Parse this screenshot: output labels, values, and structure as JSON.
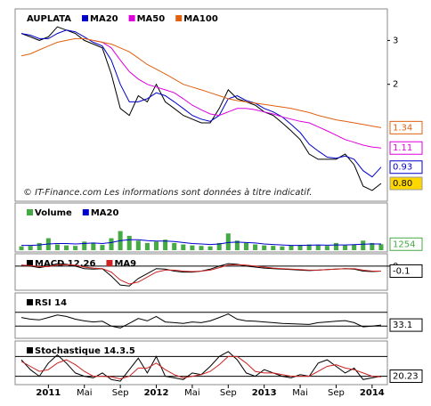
{
  "categories": [
    null,
    null,
    null,
    "2011",
    null,
    null,
    null,
    "Mai",
    null,
    null,
    null,
    "Sep",
    null,
    null,
    null,
    "2012",
    null,
    null,
    null,
    "Mai",
    null,
    null,
    null,
    "Sep",
    null,
    null,
    null,
    "2013",
    null,
    null,
    null,
    "Mai",
    null,
    null,
    null,
    "Sep",
    null,
    null,
    null,
    "2014",
    null
  ],
  "chart_data": [
    {
      "type": "line",
      "title": "AUPLATA",
      "log": true,
      "ylim": [
        0.69,
        3.95
      ],
      "yticks": [
        2,
        3
      ],
      "annotation": "© IT-Finance.com     Les informations sont données à titre indicatif.",
      "series": [
        {
          "color": "#000000",
          "last_label": true,
          "label_background": "#ffd700",
          "values": [
            3.2,
            3.1,
            3.0,
            3.1,
            3.4,
            3.3,
            3.2,
            3.0,
            2.9,
            2.8,
            2.2,
            1.6,
            1.5,
            1.8,
            1.7,
            2.0,
            1.7,
            1.6,
            1.5,
            1.45,
            1.4,
            1.4,
            1.6,
            1.9,
            1.75,
            1.7,
            1.65,
            1.55,
            1.5,
            1.4,
            1.3,
            1.2,
            1.05,
            1.0,
            1.0,
            1.0,
            1.05,
            0.95,
            0.78,
            0.75,
            0.8
          ],
          "value_labels": [
            null,
            null,
            null,
            null,
            null,
            null,
            null,
            null,
            null,
            null,
            null,
            null,
            null,
            null,
            null,
            null,
            null,
            null,
            null,
            null,
            null,
            null,
            null,
            null,
            null,
            null,
            null,
            null,
            null,
            null,
            null,
            null,
            null,
            null,
            null,
            null,
            null,
            null,
            null,
            null,
            "0.80"
          ]
        },
        {
          "name": "MA20",
          "color": "#0000cc",
          "last_label": true,
          "values": [
            3.2,
            3.15,
            3.05,
            3.05,
            3.2,
            3.3,
            3.25,
            3.1,
            2.95,
            2.85,
            2.5,
            2.0,
            1.7,
            1.7,
            1.75,
            1.85,
            1.8,
            1.7,
            1.6,
            1.5,
            1.45,
            1.42,
            1.5,
            1.75,
            1.8,
            1.72,
            1.68,
            1.6,
            1.55,
            1.48,
            1.38,
            1.28,
            1.15,
            1.08,
            1.02,
            1.01,
            1.03,
            1.0,
            0.9,
            0.85,
            0.93
          ]
        },
        {
          "name": "MA50",
          "color": "#dd00dd",
          "last_label": true,
          "values": [
            null,
            null,
            null,
            null,
            null,
            null,
            null,
            null,
            3.0,
            2.95,
            2.8,
            2.5,
            2.25,
            2.1,
            2.0,
            1.95,
            1.9,
            1.85,
            1.75,
            1.65,
            1.58,
            1.52,
            1.5,
            1.55,
            1.6,
            1.6,
            1.58,
            1.55,
            1.52,
            1.48,
            1.45,
            1.42,
            1.4,
            1.35,
            1.3,
            1.25,
            1.2,
            1.17,
            1.14,
            1.12,
            1.11
          ]
        },
        {
          "name": "MA100",
          "color": "#e06010",
          "last_label": true,
          "values": [
            2.6,
            2.65,
            2.75,
            2.85,
            2.95,
            3.0,
            3.05,
            3.05,
            3.0,
            2.95,
            2.9,
            2.8,
            2.7,
            2.55,
            2.4,
            2.3,
            2.2,
            2.1,
            2.0,
            1.95,
            1.9,
            1.85,
            1.8,
            1.75,
            1.72,
            1.7,
            1.68,
            1.66,
            1.64,
            1.62,
            1.6,
            1.57,
            1.54,
            1.5,
            1.47,
            1.44,
            1.42,
            1.4,
            1.38,
            1.36,
            1.34
          ]
        }
      ]
    },
    {
      "type": "bar",
      "ylim": [
        0,
        8000
      ],
      "series": [
        {
          "name": "Volume",
          "type": "bar",
          "color": "#44aa44",
          "last_label": true,
          "values": [
            800,
            900,
            1500,
            2500,
            1200,
            1000,
            900,
            1800,
            1500,
            1100,
            2500,
            4000,
            3000,
            2000,
            1500,
            1800,
            2200,
            1500,
            1200,
            1000,
            900,
            800,
            1500,
            3500,
            2000,
            1500,
            1200,
            1000,
            900,
            800,
            1000,
            1100,
            1200,
            1000,
            900,
            1500,
            1000,
            1200,
            2000,
            1500,
            1254
          ]
        },
        {
          "name": "MA20",
          "type": "line",
          "color": "#0000cc",
          "values": [
            1000,
            1000,
            1100,
            1300,
            1400,
            1400,
            1300,
            1400,
            1500,
            1400,
            1600,
            2000,
            2200,
            2200,
            2000,
            1900,
            1900,
            1800,
            1600,
            1400,
            1300,
            1200,
            1300,
            1600,
            1700,
            1600,
            1500,
            1300,
            1200,
            1100,
            1000,
            1000,
            1050,
            1100,
            1050,
            1100,
            1100,
            1150,
            1250,
            1300,
            1300
          ]
        }
      ]
    },
    {
      "type": "line",
      "ylim": [
        -0.45,
        0.07
      ],
      "yticks": [
        0
      ],
      "series": [
        {
          "name": "MACD 12.26",
          "color": "#000000",
          "last_label": true,
          "values": [
            0.02,
            0.0,
            -0.03,
            0.0,
            0.05,
            0.04,
            0.0,
            -0.05,
            -0.06,
            -0.05,
            -0.2,
            -0.38,
            -0.4,
            -0.25,
            -0.15,
            -0.05,
            -0.06,
            -0.1,
            -0.12,
            -0.12,
            -0.1,
            -0.06,
            0.0,
            0.05,
            0.04,
            0.0,
            -0.02,
            -0.04,
            -0.05,
            -0.06,
            -0.07,
            -0.08,
            -0.09,
            -0.08,
            -0.07,
            -0.06,
            -0.05,
            -0.06,
            -0.1,
            -0.11,
            -0.1
          ]
        },
        {
          "name": "MA9",
          "color": "#cc2222",
          "values": [
            0.02,
            0.01,
            -0.01,
            -0.01,
            0.02,
            0.03,
            0.02,
            -0.02,
            -0.04,
            -0.05,
            -0.12,
            -0.28,
            -0.36,
            -0.32,
            -0.22,
            -0.12,
            -0.08,
            -0.08,
            -0.1,
            -0.11,
            -0.1,
            -0.08,
            -0.03,
            0.02,
            0.03,
            0.02,
            0.0,
            -0.02,
            -0.04,
            -0.05,
            -0.06,
            -0.07,
            -0.08,
            -0.08,
            -0.07,
            -0.06,
            -0.05,
            -0.05,
            -0.08,
            -0.1,
            -0.1
          ]
        }
      ]
    },
    {
      "type": "line",
      "ylim": [
        0,
        100
      ],
      "hlines": [
        30,
        70
      ],
      "series": [
        {
          "name": "RSI 14",
          "color": "#000000",
          "last_label": true,
          "values": [
            55,
            50,
            48,
            55,
            62,
            58,
            50,
            45,
            42,
            44,
            30,
            25,
            38,
            52,
            45,
            58,
            42,
            40,
            38,
            42,
            40,
            45,
            55,
            65,
            50,
            45,
            44,
            42,
            40,
            38,
            37,
            36,
            35,
            40,
            42,
            44,
            46,
            40,
            28,
            30,
            33.1
          ]
        }
      ]
    },
    {
      "type": "line",
      "ylim": [
        0,
        100
      ],
      "hlines": [
        20,
        80
      ],
      "series": [
        {
          "name": "Stochastique 14.3.5",
          "color": "#000000",
          "last_label": true,
          "values": [
            70,
            40,
            20,
            60,
            85,
            60,
            30,
            20,
            15,
            30,
            10,
            5,
            40,
            75,
            30,
            80,
            20,
            15,
            10,
            30,
            25,
            50,
            80,
            95,
            70,
            30,
            20,
            40,
            30,
            20,
            15,
            25,
            20,
            60,
            70,
            50,
            30,
            45,
            10,
            15,
            20.23
          ]
        },
        {
          "color": "#cc2222",
          "values": [
            65,
            50,
            35,
            40,
            60,
            70,
            55,
            35,
            20,
            20,
            18,
            12,
            20,
            45,
            45,
            60,
            40,
            25,
            15,
            20,
            25,
            35,
            55,
            80,
            80,
            60,
            35,
            30,
            30,
            25,
            20,
            20,
            20,
            35,
            50,
            55,
            45,
            40,
            30,
            20,
            18
          ]
        }
      ]
    }
  ]
}
